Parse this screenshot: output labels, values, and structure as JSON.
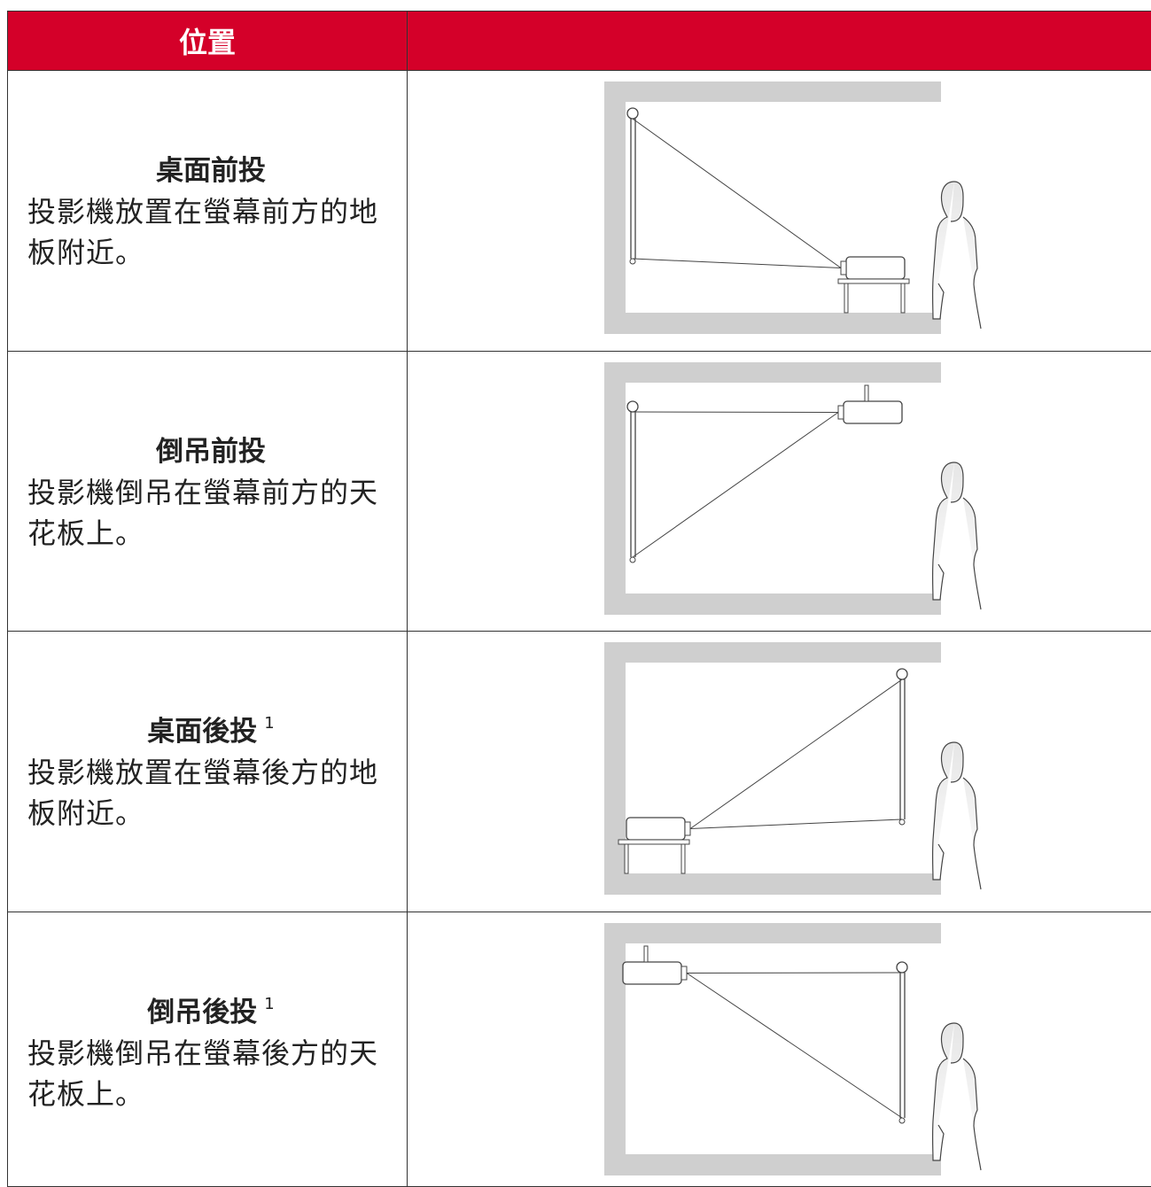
{
  "table": {
    "header": {
      "title": "位置"
    },
    "rows": [
      {
        "title": "桌面前投",
        "description": "投影機放置在螢幕前方的地板附近。"
      },
      {
        "title": "倒吊前投",
        "description": "投影機倒吊在螢幕前方的天花板上。"
      },
      {
        "title": "桌面後投",
        "note": "1",
        "description": "投影機放置在螢幕後方的地板附近。"
      },
      {
        "title": "倒吊後投",
        "note": "1",
        "description": "投影機倒吊在螢幕後方的天花板上。"
      }
    ]
  }
}
